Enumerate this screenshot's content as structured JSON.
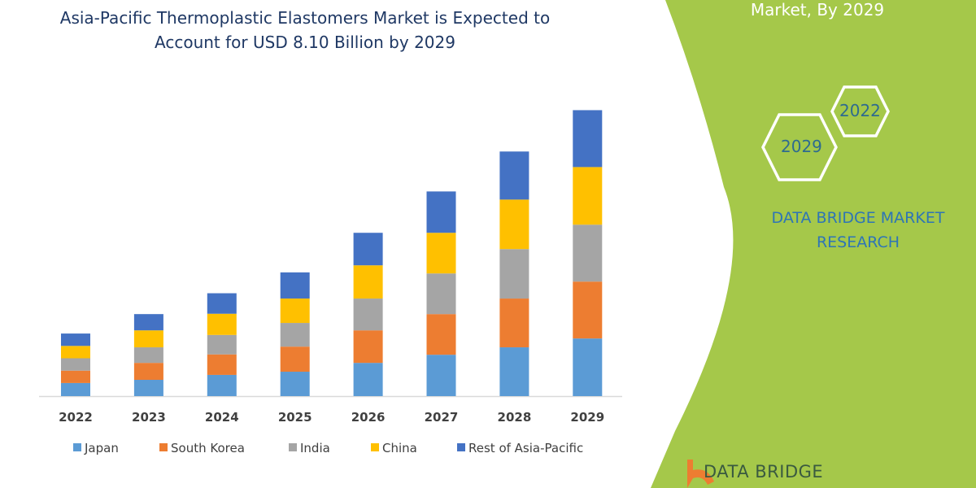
{
  "header": {
    "title_line1": "Asia-Pacific Thermoplastic Elastomers Market is Expected to",
    "title_line2": "Account for USD 8.10 Billion by 2029"
  },
  "side_panel": {
    "title": "Market, By 2029",
    "hex_start": "2022",
    "hex_end": "2029",
    "brand_line1": "DATA BRIDGE MARKET",
    "brand_line2": "RESEARCH",
    "logo_text": "DATA BRIDGE",
    "color": "#a5c84a"
  },
  "chart_data": {
    "type": "bar",
    "stacked": true,
    "title": "",
    "xlabel": "",
    "ylabel": "",
    "grid": false,
    "legend_position": "bottom",
    "categories": [
      "2022",
      "2023",
      "2024",
      "2025",
      "2026",
      "2027",
      "2028",
      "2029"
    ],
    "series": [
      {
        "name": "Japan",
        "color": "#5b9bd5",
        "values": [
          0.37,
          0.46,
          0.6,
          0.69,
          0.94,
          1.17,
          1.38,
          1.63
        ]
      },
      {
        "name": "South Korea",
        "color": "#ed7d31",
        "values": [
          0.35,
          0.48,
          0.58,
          0.71,
          0.92,
          1.15,
          1.38,
          1.61
        ]
      },
      {
        "name": "India",
        "color": "#a5a5a5",
        "values": [
          0.35,
          0.44,
          0.55,
          0.67,
          0.9,
          1.15,
          1.4,
          1.61
        ]
      },
      {
        "name": "China",
        "color": "#ffc000",
        "values": [
          0.35,
          0.48,
          0.6,
          0.69,
          0.94,
          1.15,
          1.4,
          1.63
        ]
      },
      {
        "name": "Rest of Asia-Pacific",
        "color": "#4472c4",
        "values": [
          0.35,
          0.46,
          0.58,
          0.74,
          0.92,
          1.17,
          1.36,
          1.61
        ]
      }
    ]
  }
}
